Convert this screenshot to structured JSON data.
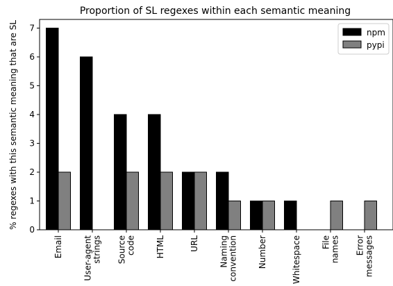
{
  "chart_data": {
    "type": "bar",
    "title": "Proportion of SL regexes within each semantic meaning",
    "xlabel": "",
    "ylabel": "% regexes with this semantic meaning that are SL",
    "categories": [
      [
        "Email"
      ],
      [
        "User-agent",
        "strings"
      ],
      [
        "Source",
        "code"
      ],
      [
        "HTML"
      ],
      [
        "URL"
      ],
      [
        "Naming",
        "convention"
      ],
      [
        "Number"
      ],
      [
        "Whitespace"
      ],
      [
        "File",
        "names"
      ],
      [
        "Error",
        "messages"
      ]
    ],
    "series": [
      {
        "name": "npm",
        "color": "#000000",
        "values": [
          7,
          6,
          4,
          4,
          2,
          2,
          1,
          1,
          0,
          0
        ]
      },
      {
        "name": "pypi",
        "color": "#808080",
        "values": [
          2,
          0,
          2,
          2,
          2,
          1,
          1,
          0,
          1,
          1
        ]
      }
    ],
    "ylim": [
      0,
      7.3
    ],
    "yticks": [
      0,
      1,
      2,
      3,
      4,
      5,
      6,
      7
    ],
    "grid": false,
    "legend_position": "top-right"
  }
}
